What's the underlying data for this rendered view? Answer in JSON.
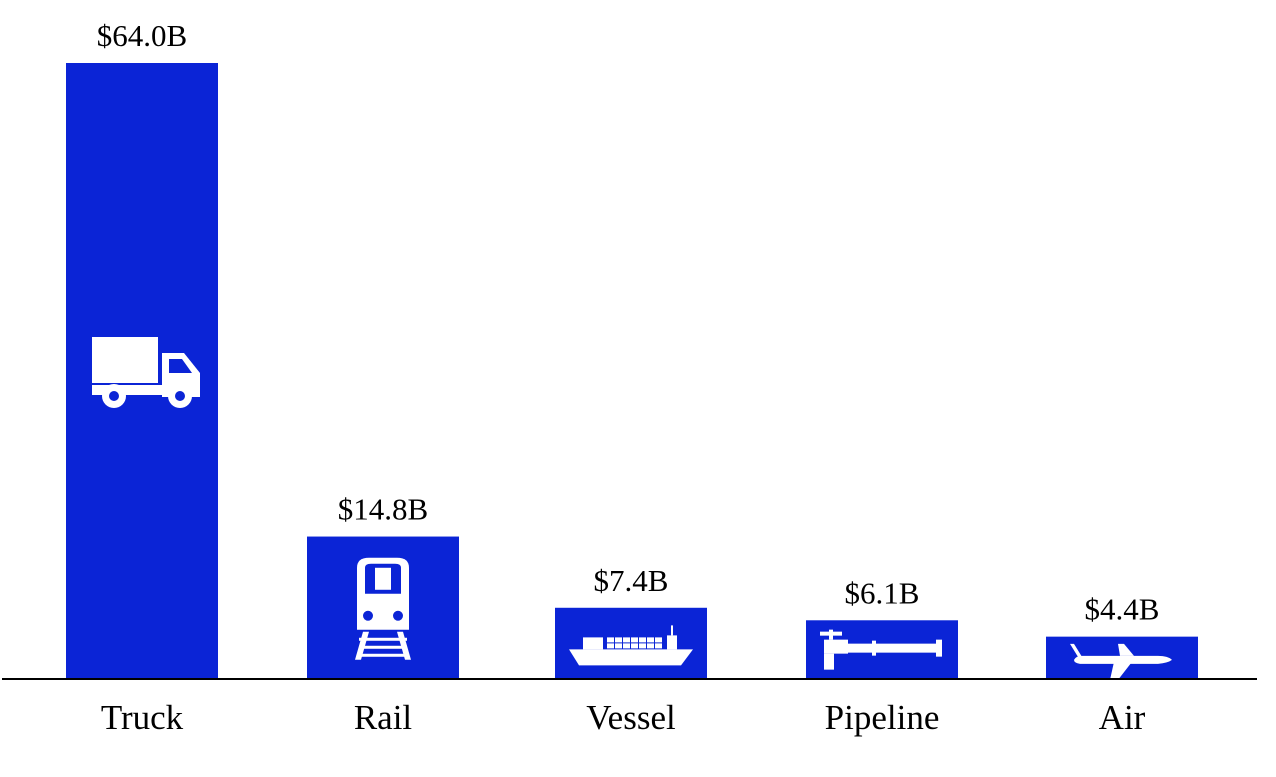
{
  "chart_data": {
    "type": "bar",
    "title": "",
    "xlabel": "",
    "ylabel": "",
    "categories": [
      "Truck",
      "Rail",
      "Vessel",
      "Pipeline",
      "Air"
    ],
    "values": [
      64.0,
      14.8,
      7.4,
      6.1,
      4.4
    ],
    "value_labels": [
      "$64.0B",
      "$14.8B",
      "$7.4B",
      "$6.1B",
      "$4.4B"
    ],
    "icons": [
      "truck-icon",
      "train-icon",
      "ship-icon",
      "pipeline-icon",
      "airplane-icon"
    ],
    "ylim": [
      0,
      64.0
    ],
    "grid": false,
    "legend": "none",
    "colors": {
      "bar": "#0b24d6",
      "icon": "#ffffff",
      "axis": "#000000",
      "text": "#000000"
    }
  }
}
